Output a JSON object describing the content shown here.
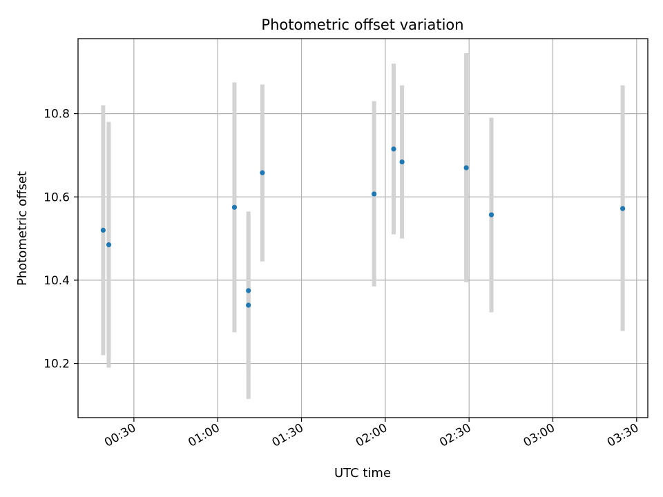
{
  "chart_data": {
    "type": "scatter",
    "title": "Photometric offset variation",
    "xlabel": "UTC time",
    "ylabel": "Photometric offset",
    "x_ticks": [
      "00:30",
      "01:00",
      "01:30",
      "02:00",
      "02:30",
      "03:00",
      "03:30"
    ],
    "y_ticks": [
      "10.2",
      "10.4",
      "10.6",
      "10.8"
    ],
    "xlim": [
      "00:10",
      "03:34"
    ],
    "ylim": [
      10.07,
      10.98
    ],
    "grid": true,
    "points": [
      {
        "x": "00:19",
        "y": 10.52,
        "yerr_low": 10.22,
        "yerr_high": 10.82
      },
      {
        "x": "00:21",
        "y": 10.485,
        "yerr_low": 10.19,
        "yerr_high": 10.78
      },
      {
        "x": "01:06",
        "y": 10.575,
        "yerr_low": 10.275,
        "yerr_high": 10.875
      },
      {
        "x": "01:11",
        "y": 10.375,
        "yerr_low": 10.18,
        "yerr_high": 10.565
      },
      {
        "x": "01:11",
        "y": 10.34,
        "yerr_low": 10.115,
        "yerr_high": 10.555
      },
      {
        "x": "01:16",
        "y": 10.658,
        "yerr_low": 10.445,
        "yerr_high": 10.87
      },
      {
        "x": "01:56",
        "y": 10.607,
        "yerr_low": 10.385,
        "yerr_high": 10.83
      },
      {
        "x": "02:03",
        "y": 10.715,
        "yerr_low": 10.51,
        "yerr_high": 10.92
      },
      {
        "x": "02:06",
        "y": 10.684,
        "yerr_low": 10.5,
        "yerr_high": 10.868
      },
      {
        "x": "02:29",
        "y": 10.67,
        "yerr_low": 10.395,
        "yerr_high": 10.945
      },
      {
        "x": "02:38",
        "y": 10.557,
        "yerr_low": 10.323,
        "yerr_high": 10.79
      },
      {
        "x": "03:25",
        "y": 10.572,
        "yerr_low": 10.278,
        "yerr_high": 10.868
      }
    ],
    "colors": {
      "marker": "#1f77b4",
      "errorbar": "#d3d3d3",
      "grid": "#b0b0b0",
      "axes": "#000000"
    }
  }
}
